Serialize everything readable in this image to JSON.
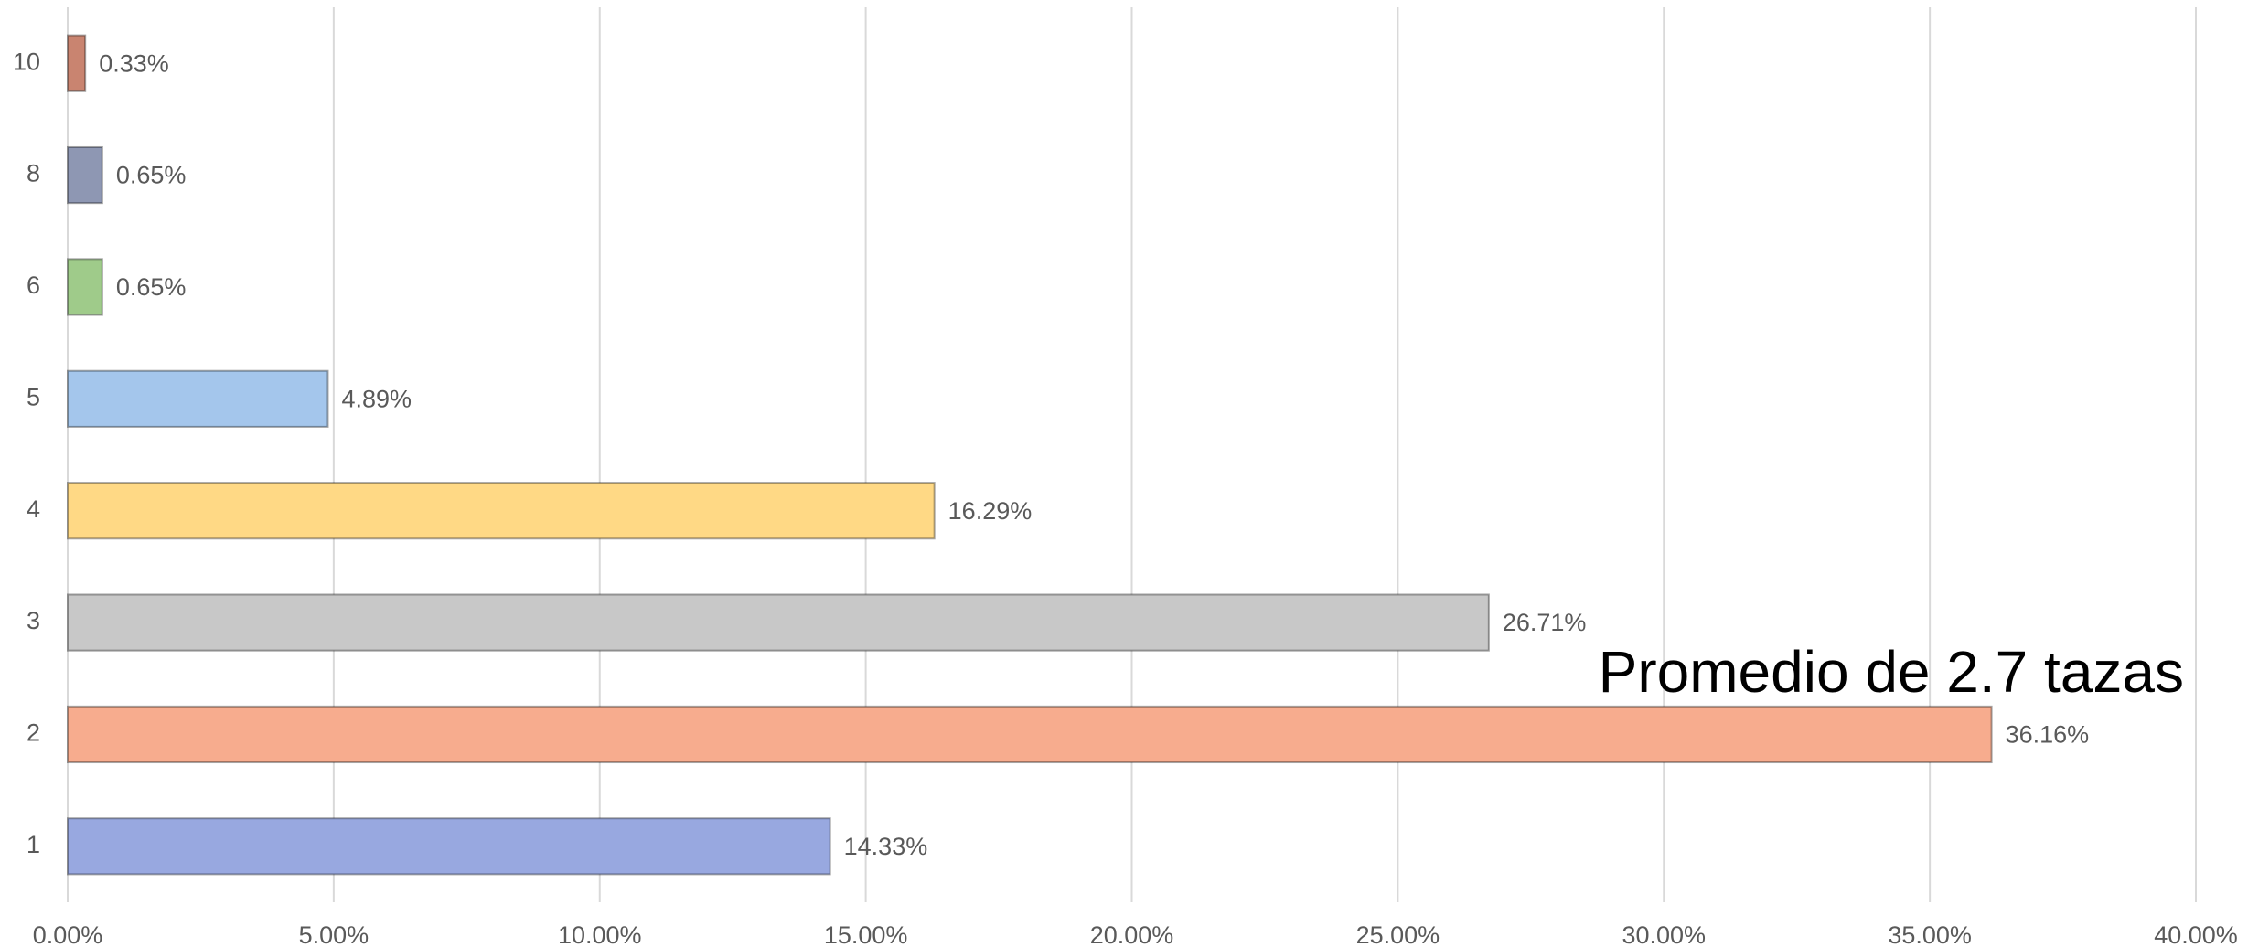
{
  "chart_data": {
    "type": "bar",
    "orientation": "horizontal",
    "categories": [
      "10",
      "8",
      "6",
      "5",
      "4",
      "3",
      "2",
      "1"
    ],
    "values": [
      0.33,
      0.65,
      0.65,
      4.89,
      16.29,
      26.71,
      36.16,
      14.33
    ],
    "value_labels": [
      "0.33%",
      "0.65%",
      "0.65%",
      "4.89%",
      "16.29%",
      "26.71%",
      "36.16%",
      "14.33%"
    ],
    "colors": [
      "#c98470",
      "#8e97b3",
      "#9fcb8a",
      "#a4c6ec",
      "#ffd985",
      "#c8c8c8",
      "#f7ac8e",
      "#98a8e0"
    ],
    "xlim": [
      0,
      40
    ],
    "xticks": [
      {
        "value": 0,
        "label": "0.00%"
      },
      {
        "value": 5,
        "label": "5.00%"
      },
      {
        "value": 10,
        "label": "10.00%"
      },
      {
        "value": 15,
        "label": "15.00%"
      },
      {
        "value": 20,
        "label": "20.00%"
      },
      {
        "value": 25,
        "label": "25.00%"
      },
      {
        "value": 30,
        "label": "30.00%"
      },
      {
        "value": 35,
        "label": "35.00%"
      },
      {
        "value": 40,
        "label": "40.00%"
      }
    ],
    "grid": true,
    "annotation": "Promedio de 2.7 tazas"
  }
}
